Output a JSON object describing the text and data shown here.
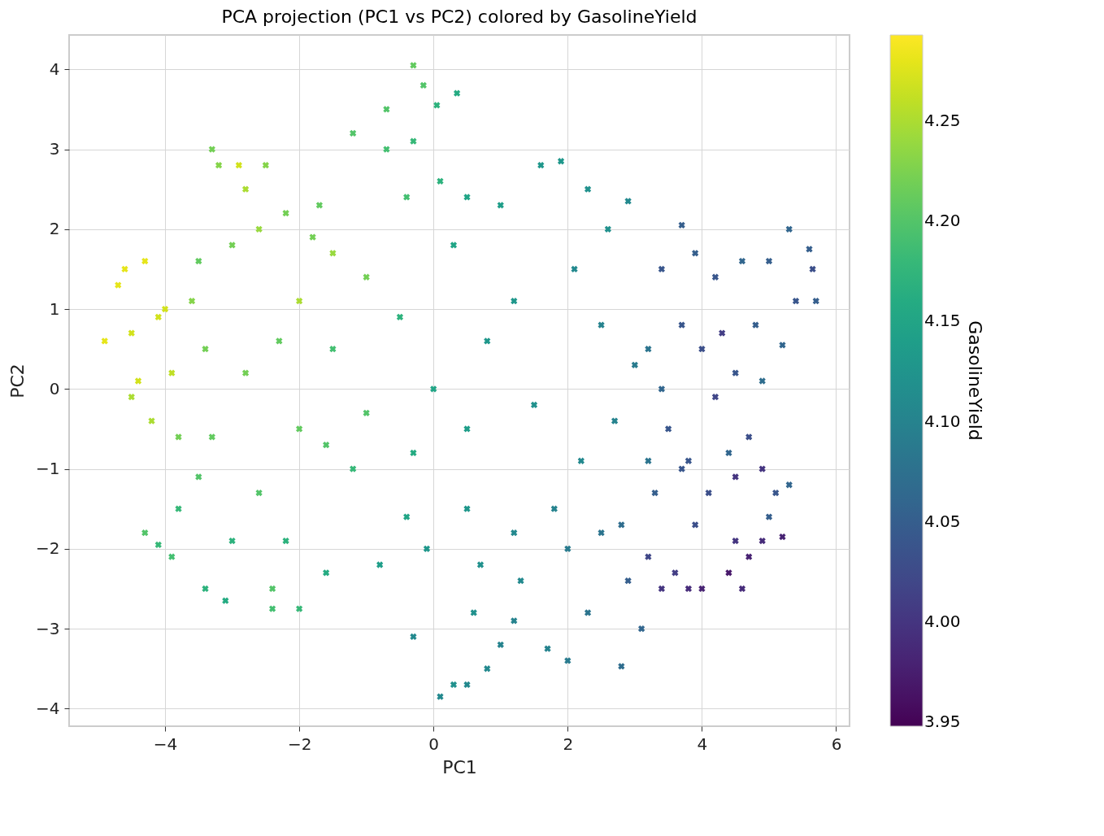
{
  "chart_data": {
    "type": "scatter",
    "title": "PCA projection (PC1 vs PC2) colored by GasolineYield",
    "xlabel": "PC1",
    "ylabel": "PC2",
    "clabel": "GasolineYield",
    "marker": "cross",
    "grid": true,
    "xlim": [
      -5.43,
      6.2
    ],
    "ylim": [
      -4.22,
      4.43
    ],
    "clim": [
      3.948,
      4.293
    ],
    "xticks": [
      {
        "value": -4,
        "label": "−4"
      },
      {
        "value": -2,
        "label": "−2"
      },
      0,
      2,
      4,
      6
    ],
    "yticks": [
      {
        "value": -4,
        "label": "−4"
      },
      {
        "value": -3,
        "label": "−3"
      },
      {
        "value": -2,
        "label": "−2"
      },
      {
        "value": -1,
        "label": "−1"
      },
      0,
      1,
      2,
      3,
      4
    ],
    "cticks": [
      {
        "value": 3.95,
        "label": "3.95"
      },
      {
        "value": 4.0,
        "label": "4.00"
      },
      {
        "value": 4.05,
        "label": "4.05"
      },
      {
        "value": 4.1,
        "label": "4.10"
      },
      {
        "value": 4.15,
        "label": "4.15"
      },
      {
        "value": 4.2,
        "label": "4.20"
      },
      {
        "value": 4.25,
        "label": "4.25"
      }
    ],
    "x": [
      -4.9,
      -4.6,
      -4.3,
      -4.5,
      -4.1,
      -4.4,
      -4.2,
      -3.9,
      -4.0,
      -4.7,
      -4.5,
      -2.9,
      -2.8,
      -3.2,
      -3.3,
      -2.5,
      -2.2,
      -2.6,
      -3.0,
      -3.5,
      -3.6,
      -2.0,
      -1.8,
      -1.5,
      -1.0,
      -1.7,
      -1.2,
      -0.7,
      -0.3,
      -0.15,
      0.05,
      0.35,
      -0.7,
      -0.3,
      0.1,
      0.5,
      -0.4,
      -4.3,
      -4.1,
      -3.9,
      -3.8,
      -3.4,
      -3.1,
      -2.4,
      -2.4,
      -2.0,
      -3.0,
      -3.5,
      -3.3,
      -3.8,
      -2.6,
      -2.2,
      -1.6,
      -2.8,
      -3.4,
      -2.3,
      -2.0,
      -1.5,
      -1.0,
      -0.5,
      0.0,
      -0.3,
      0.5,
      0.8,
      1.2,
      0.3,
      1.0,
      1.6,
      1.9,
      2.3,
      2.9,
      2.6,
      2.1,
      2.5,
      3.0,
      2.7,
      3.2,
      2.2,
      1.5,
      1.8,
      1.2,
      0.5,
      -0.4,
      -1.2,
      -1.6,
      -0.8,
      -0.1,
      0.7,
      1.3,
      2.0,
      2.5,
      2.8,
      -0.3,
      0.1,
      0.3,
      0.5,
      0.8,
      1.0,
      0.6,
      1.2,
      1.7,
      2.0,
      2.8,
      3.1,
      2.9,
      2.3,
      3.4,
      3.7,
      3.9,
      4.2,
      4.6,
      5.0,
      5.3,
      5.6,
      5.65,
      5.7,
      5.4,
      5.2,
      4.8,
      4.3,
      4.0,
      3.7,
      3.4,
      4.5,
      4.9,
      3.2,
      3.5,
      3.3,
      3.8,
      4.4,
      4.7,
      4.5,
      4.1,
      4.9,
      5.1,
      5.3,
      5.0,
      4.5,
      4.7,
      4.4,
      4.6,
      5.2,
      4.9,
      4.0,
      3.8,
      3.4,
      3.2,
      3.6,
      3.9,
      3.7,
      4.2
    ],
    "values": [
      0.6,
      1.5,
      1.6,
      0.7,
      0.9,
      0.1,
      -0.4,
      0.2,
      1.0,
      1.3,
      -0.1,
      2.8,
      2.5,
      2.8,
      3.0,
      2.8,
      2.2,
      2.0,
      1.8,
      1.6,
      1.1,
      1.1,
      1.9,
      1.7,
      1.4,
      2.3,
      3.2,
      3.5,
      4.05,
      3.8,
      3.55,
      3.7,
      3.0,
      3.1,
      2.6,
      2.4,
      2.4,
      -1.8,
      -1.95,
      -2.1,
      -1.5,
      -2.5,
      -2.65,
      -2.5,
      -2.75,
      -2.75,
      -1.9,
      -1.1,
      -0.6,
      -0.6,
      -1.3,
      -1.9,
      -2.3,
      0.2,
      0.5,
      0.6,
      -0.5,
      0.5,
      -0.3,
      0.9,
      0.0,
      -0.8,
      -0.5,
      0.6,
      1.1,
      1.8,
      2.3,
      2.8,
      2.85,
      2.5,
      2.35,
      2.0,
      1.5,
      0.8,
      0.3,
      -0.4,
      -0.9,
      -0.9,
      -0.2,
      -1.5,
      -1.8,
      -1.5,
      -1.6,
      -1.0,
      -0.7,
      -2.2,
      -2.0,
      -2.2,
      -2.4,
      -2.0,
      -1.8,
      -1.7,
      -3.1,
      -3.85,
      -3.7,
      -3.7,
      -3.5,
      -3.2,
      -2.8,
      -2.9,
      -3.25,
      -3.4,
      -3.47,
      -3.0,
      -2.4,
      -2.8,
      1.5,
      2.05,
      1.7,
      1.4,
      1.6,
      1.6,
      2.0,
      1.75,
      1.5,
      1.1,
      1.1,
      0.55,
      0.8,
      0.7,
      0.5,
      0.8,
      0.0,
      0.2,
      0.1,
      0.5,
      -0.5,
      -1.3,
      -0.9,
      -0.8,
      -0.6,
      -1.1,
      -1.3,
      -1.0,
      -1.3,
      -1.2,
      -1.6,
      -1.9,
      -2.1,
      -2.3,
      -2.5,
      -1.85,
      -1.9,
      -2.5,
      -2.5,
      -2.5,
      -2.1,
      -2.3,
      -1.7,
      -1.0,
      -0.1
    ],
    "cvalues": [
      4.28,
      4.28,
      4.28,
      4.27,
      4.27,
      4.27,
      4.25,
      4.26,
      4.27,
      4.28,
      4.25,
      4.27,
      4.25,
      4.23,
      4.22,
      4.23,
      4.22,
      4.24,
      4.22,
      4.21,
      4.23,
      4.25,
      4.22,
      4.24,
      4.22,
      4.21,
      4.2,
      4.2,
      4.21,
      4.2,
      4.17,
      4.16,
      4.19,
      4.18,
      4.17,
      4.15,
      4.19,
      4.2,
      4.18,
      4.19,
      4.18,
      4.17,
      4.16,
      4.2,
      4.19,
      4.18,
      4.17,
      4.2,
      4.21,
      4.22,
      4.2,
      4.17,
      4.16,
      4.22,
      4.22,
      4.21,
      4.21,
      4.19,
      4.2,
      4.17,
      4.15,
      4.16,
      4.14,
      4.13,
      4.13,
      4.15,
      4.14,
      4.13,
      4.13,
      4.12,
      4.11,
      4.12,
      4.11,
      4.1,
      4.09,
      4.1,
      4.08,
      4.11,
      4.12,
      4.1,
      4.11,
      4.13,
      4.15,
      4.18,
      4.2,
      4.14,
      4.13,
      4.12,
      4.11,
      4.09,
      4.08,
      4.07,
      4.11,
      4.11,
      4.12,
      4.11,
      4.11,
      4.1,
      4.12,
      4.1,
      4.1,
      4.09,
      4.07,
      4.06,
      4.05,
      4.08,
      4.04,
      4.05,
      4.05,
      4.04,
      4.06,
      4.05,
      4.06,
      4.05,
      4.03,
      4.05,
      4.04,
      4.06,
      4.05,
      4.01,
      4.03,
      4.04,
      4.06,
      4.04,
      4.07,
      4.08,
      4.04,
      4.05,
      4.04,
      4.06,
      4.03,
      4.0,
      4.03,
      4.0,
      4.04,
      4.06,
      4.05,
      4.0,
      3.98,
      3.97,
      3.99,
      3.98,
      3.99,
      3.98,
      3.99,
      4.0,
      4.02,
      4.01,
      4.03,
      4.04,
      4.02
    ]
  }
}
